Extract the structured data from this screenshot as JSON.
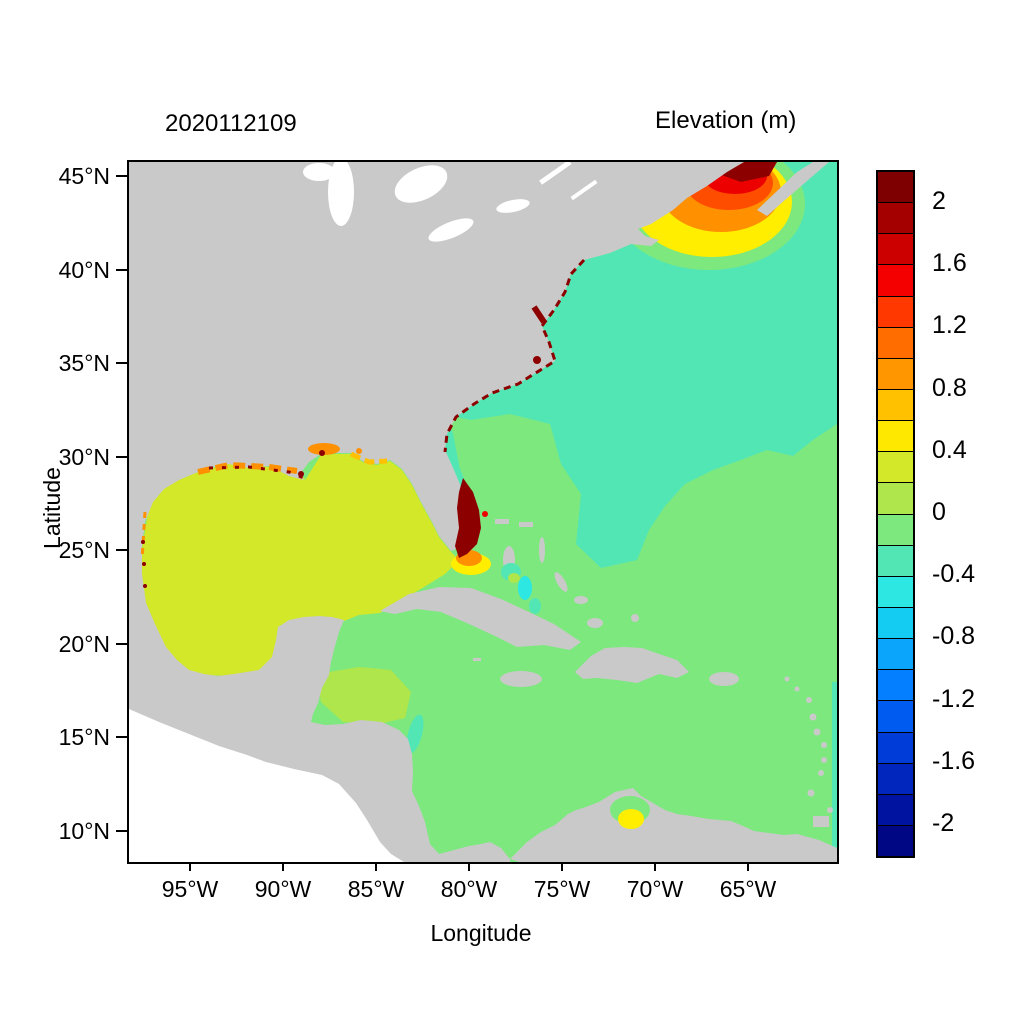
{
  "figure": {
    "timestamp_title": "2020112109",
    "colorbar_title": "Elevation (m)",
    "xlabel": "Longitude",
    "ylabel": "Latitude"
  },
  "axes": {
    "x_ticks": [
      "95°W",
      "90°W",
      "85°W",
      "80°W",
      "75°W",
      "70°W",
      "65°W"
    ],
    "y_ticks": [
      "45°N",
      "40°N",
      "35°N",
      "30°N",
      "25°N",
      "20°N",
      "15°N",
      "10°N"
    ],
    "lon_range_degW": [
      98.4,
      60.4
    ],
    "lat_range_degN": [
      8.4,
      45.9
    ]
  },
  "colorbar": {
    "tick_labels": [
      "2",
      "1.6",
      "1.2",
      "0.8",
      "0.4",
      "0",
      "-0.4",
      "-0.8",
      "-1.2",
      "-1.6",
      "-2"
    ],
    "vmin": -2.2,
    "vmax": 2.2,
    "step": 0.2,
    "colors_top_to_bottom": [
      "#7f0000",
      "#a50000",
      "#cd0000",
      "#f40000",
      "#ff3800",
      "#ff6c00",
      "#ff9600",
      "#ffc100",
      "#ffe800",
      "#d3e829",
      "#aee64b",
      "#7de87e",
      "#53e6b5",
      "#2de8e2",
      "#14ccf2",
      "#0ba6fb",
      "#047fff",
      "#005cf0",
      "#003cd8",
      "#0026bd",
      "#0013a0",
      "#000785"
    ]
  },
  "palette": {
    "land": "#c9c9c9",
    "lake": "#ffffff",
    "ocean-green": "#7de87e",
    "ocean-green2": "#aee64b",
    "ocean-teal": "#53e6b5",
    "ocean-yellowgreen": "#d3e829",
    "cyan": "#2de8e2",
    "yellow": "#ffee00",
    "yellow-orange": "#ffc100",
    "orange": "#ff9000",
    "redorange": "#ff4d00",
    "red": "#ec0000",
    "darkred": "#8d0000"
  },
  "chart_data": {
    "type": "heatmap",
    "title": "Elevation (m)",
    "timestamp": "2020112109",
    "xlabel": "Longitude",
    "ylabel": "Latitude",
    "legend_position": "right-colorbar",
    "grid": false,
    "colorbar_ticks": [
      2,
      1.6,
      1.2,
      0.8,
      0.4,
      0,
      -0.4,
      -0.8,
      -1.2,
      -1.6,
      -2
    ],
    "value_range_m": [
      -2.2,
      2.2
    ],
    "grid_sample": {
      "latN": [
        45,
        40,
        35,
        30,
        25,
        20,
        15,
        10
      ],
      "lonW": [
        95,
        90,
        85,
        80,
        75,
        70,
        65
      ],
      "elevation_m": [
        [
          null,
          null,
          null,
          null,
          null,
          1.4,
          -0.3
        ],
        [
          null,
          null,
          null,
          null,
          -0.3,
          -0.3,
          -0.3
        ],
        [
          null,
          null,
          null,
          -0.3,
          -0.3,
          -0.3,
          -0.3
        ],
        [
          null,
          null,
          0.3,
          -0.3,
          -0.3,
          -0.3,
          -0.1
        ],
        [
          null,
          0.3,
          0.3,
          0.3,
          -0.1,
          -0.1,
          -0.1
        ],
        [
          null,
          0.3,
          0.2,
          0.1,
          0.1,
          -0.1,
          -0.1
        ],
        [
          null,
          null,
          0.1,
          0.1,
          0.1,
          0.1,
          -0.1
        ],
        [
          null,
          null,
          null,
          0.1,
          0.1,
          0.1,
          -0.1
        ]
      ],
      "note": "null = land (gray); values in meters read from colorbar bins"
    },
    "features": [
      {
        "name": "Bay of Fundy surge maximum",
        "lonW": 66.5,
        "latN": 45.5,
        "elevation_m": 2.2
      },
      {
        "name": "Gulf of Maine orange-red plume",
        "lonW": 68.5,
        "latN": 43.5,
        "elevation_m": 1.3
      },
      {
        "name": "Southeast Florida coastal maximum",
        "lonW": 80.1,
        "latN": 26.5,
        "elevation_m": 2.2
      },
      {
        "name": "US southeast coast speckled maxima (Chesapeake to Georgia)",
        "lonW": 78,
        "latN": 33,
        "elevation_m": 2.0
      },
      {
        "name": "Mississippi-Alabama coastal band",
        "lonW": 88.5,
        "latN": 30.2,
        "elevation_m": 0.8
      },
      {
        "name": "Gulf of Mexico interior",
        "lonW": 90,
        "latN": 25,
        "elevation_m": 0.3
      },
      {
        "name": "Northwest Caribbean (Belize/Honduras)",
        "lonW": 86,
        "latN": 18,
        "elevation_m": 0.2
      },
      {
        "name": "Caribbean Sea interior",
        "lonW": 72,
        "latN": 15,
        "elevation_m": 0.1
      },
      {
        "name": "Open northwest Atlantic depression",
        "lonW": 70,
        "latN": 38,
        "elevation_m": -0.3
      },
      {
        "name": "Bahamas cyan patches",
        "lonW": 76.5,
        "latN": 23.5,
        "elevation_m": -0.6
      },
      {
        "name": "Lake Maracaibo yellow spot",
        "lonW": 71.5,
        "latN": 9.8,
        "elevation_m": 0.5
      }
    ]
  }
}
